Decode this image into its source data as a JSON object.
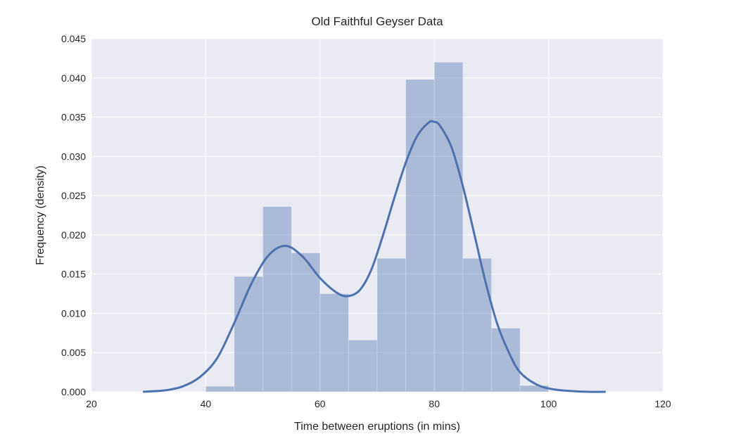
{
  "chart_data": {
    "type": "histogram",
    "title": "Old Faithful Geyser Data",
    "xlabel": "Time between eruptions (in mins)",
    "ylabel": "Frequency (density)",
    "xlim": [
      20,
      120
    ],
    "ylim": [
      0,
      0.045
    ],
    "x_ticks": [
      "20",
      "40",
      "60",
      "80",
      "100",
      "120"
    ],
    "y_ticks": [
      "0.000",
      "0.005",
      "0.010",
      "0.015",
      "0.020",
      "0.025",
      "0.030",
      "0.035",
      "0.040",
      "0.045"
    ],
    "grid": true,
    "colors": {
      "background": "#eaeaf2",
      "grid": "#ffffff",
      "bars": "#4c72b0",
      "kde": "#4c72b0"
    },
    "bins": [
      {
        "x0": 40,
        "x1": 45,
        "density": 0.0007
      },
      {
        "x0": 45,
        "x1": 50,
        "density": 0.0147
      },
      {
        "x0": 50,
        "x1": 55,
        "density": 0.0236
      },
      {
        "x0": 55,
        "x1": 60,
        "density": 0.0177
      },
      {
        "x0": 60,
        "x1": 65,
        "density": 0.0125
      },
      {
        "x0": 65,
        "x1": 70,
        "density": 0.0066
      },
      {
        "x0": 70,
        "x1": 75,
        "density": 0.017
      },
      {
        "x0": 75,
        "x1": 80,
        "density": 0.0398
      },
      {
        "x0": 80,
        "x1": 85,
        "density": 0.042
      },
      {
        "x0": 85,
        "x1": 90,
        "density": 0.017
      },
      {
        "x0": 90,
        "x1": 95,
        "density": 0.0081
      },
      {
        "x0": 95,
        "x1": 100,
        "density": 0.0008
      }
    ],
    "kde": {
      "x": [
        29,
        33,
        36,
        39,
        42,
        45,
        48,
        51,
        54,
        57,
        60,
        63,
        65,
        67,
        69,
        71,
        73,
        75,
        77,
        79,
        80,
        81,
        83,
        85,
        87,
        89,
        91,
        93,
        95,
        98,
        101,
        104,
        107,
        110
      ],
      "y": [
        0.0,
        0.0002,
        0.0007,
        0.0019,
        0.0043,
        0.0088,
        0.0138,
        0.0174,
        0.0186,
        0.0172,
        0.0145,
        0.0126,
        0.0122,
        0.013,
        0.0156,
        0.0199,
        0.0247,
        0.0292,
        0.0326,
        0.0343,
        0.0344,
        0.0339,
        0.0312,
        0.0262,
        0.0201,
        0.0139,
        0.0087,
        0.0051,
        0.0025,
        0.0009,
        0.0003,
        0.0001,
        0.0,
        0.0
      ]
    }
  }
}
